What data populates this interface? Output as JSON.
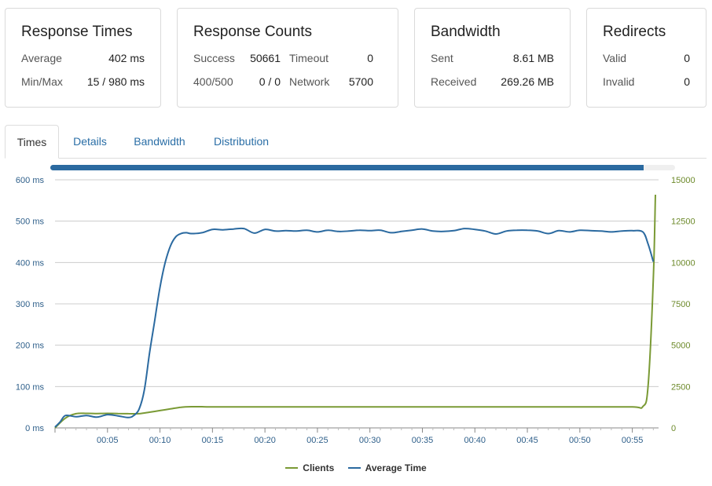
{
  "cards": {
    "response_times": {
      "title": "Response Times",
      "average_label": "Average",
      "average_value": "402 ms",
      "minmax_label": "Min/Max",
      "minmax_value": "15 / 980 ms"
    },
    "response_counts": {
      "title": "Response Counts",
      "success_label": "Success",
      "success_value": "50661",
      "timeout_label": "Timeout",
      "timeout_value": "0",
      "err_label": "400/500",
      "err_value": "0 / 0",
      "network_label": "Network",
      "network_value": "5700"
    },
    "bandwidth": {
      "title": "Bandwidth",
      "sent_label": "Sent",
      "sent_value": "8.61 MB",
      "received_label": "Received",
      "received_value": "269.26 MB"
    },
    "redirects": {
      "title": "Redirects",
      "valid_label": "Valid",
      "valid_value": "0",
      "invalid_label": "Invalid",
      "invalid_value": "0"
    }
  },
  "tabs": [
    {
      "label": "Times",
      "active": true
    },
    {
      "label": "Details",
      "active": false
    },
    {
      "label": "Bandwidth",
      "active": false
    },
    {
      "label": "Distribution",
      "active": false
    }
  ],
  "progress": {
    "fraction": 0.95
  },
  "colors": {
    "avg_time": "#2b6aa0",
    "clients": "#7a9a35",
    "grid": "#cccccc"
  },
  "chart_data": {
    "type": "line",
    "x_tick_labels": [
      "00:05",
      "00:10",
      "00:15",
      "00:20",
      "00:25",
      "00:30",
      "00:35",
      "00:40",
      "00:45",
      "00:50",
      "00:55"
    ],
    "x_tick_seconds": [
      5,
      10,
      15,
      20,
      25,
      30,
      35,
      40,
      45,
      50,
      55
    ],
    "xlim": [
      0,
      57.5
    ],
    "y_left": {
      "ticks": [
        0,
        100,
        200,
        300,
        400,
        500,
        600
      ],
      "tick_labels": [
        "0 ms",
        "100 ms",
        "200 ms",
        "300 ms",
        "400 ms",
        "500 ms",
        "600 ms"
      ],
      "lim": [
        0,
        600
      ]
    },
    "y_right": {
      "ticks": [
        0,
        2500,
        5000,
        7500,
        10000,
        12500,
        15000
      ],
      "tick_labels": [
        "0",
        "2500",
        "5000",
        "7500",
        "10000",
        "12500",
        "15000"
      ],
      "lim": [
        0,
        15000
      ]
    },
    "grid": true,
    "legend_position": "bottom-center",
    "series": [
      {
        "name": "Clients",
        "axis": "right",
        "x": [
          0,
          1,
          2,
          3,
          4,
          5,
          6,
          7,
          8,
          9,
          10,
          11,
          12,
          13,
          14,
          15,
          20,
          25,
          30,
          35,
          40,
          45,
          50,
          55,
          56,
          56.5,
          57,
          57.2
        ],
        "y": [
          0,
          600,
          860,
          880,
          870,
          880,
          870,
          860,
          860,
          950,
          1050,
          1150,
          1250,
          1280,
          1280,
          1270,
          1270,
          1270,
          1270,
          1270,
          1270,
          1270,
          1270,
          1270,
          1290,
          2500,
          9000,
          14100
        ]
      },
      {
        "name": "Average Time",
        "axis": "left",
        "x": [
          0,
          0.5,
          1,
          2,
          3,
          4,
          5,
          6,
          7,
          7.5,
          8,
          8.5,
          9,
          9.5,
          10,
          10.5,
          11,
          11.5,
          12,
          12.5,
          13,
          14,
          15,
          16,
          17,
          18,
          19,
          20,
          21,
          22,
          23,
          24,
          25,
          26,
          27,
          28,
          29,
          30,
          31,
          32,
          33,
          34,
          35,
          36,
          37,
          38,
          39,
          40,
          41,
          42,
          43,
          44,
          45,
          46,
          47,
          48,
          49,
          50,
          51,
          52,
          53,
          54,
          55,
          56,
          56.5,
          57
        ],
        "y": [
          2,
          15,
          30,
          27,
          30,
          26,
          32,
          29,
          25,
          30,
          45,
          90,
          180,
          260,
          340,
          400,
          440,
          462,
          470,
          472,
          470,
          472,
          480,
          479,
          481,
          482,
          471,
          480,
          476,
          477,
          476,
          478,
          474,
          478,
          475,
          476,
          478,
          477,
          478,
          472,
          475,
          478,
          481,
          476,
          475,
          477,
          482,
          480,
          476,
          469,
          476,
          478,
          478,
          476,
          470,
          477,
          474,
          478,
          477,
          476,
          474,
          476,
          477,
          474,
          445,
          402
        ]
      }
    ]
  },
  "legend": [
    {
      "label": "Clients",
      "color": "#7a9a35"
    },
    {
      "label": "Average Time",
      "color": "#2b6aa0"
    }
  ]
}
